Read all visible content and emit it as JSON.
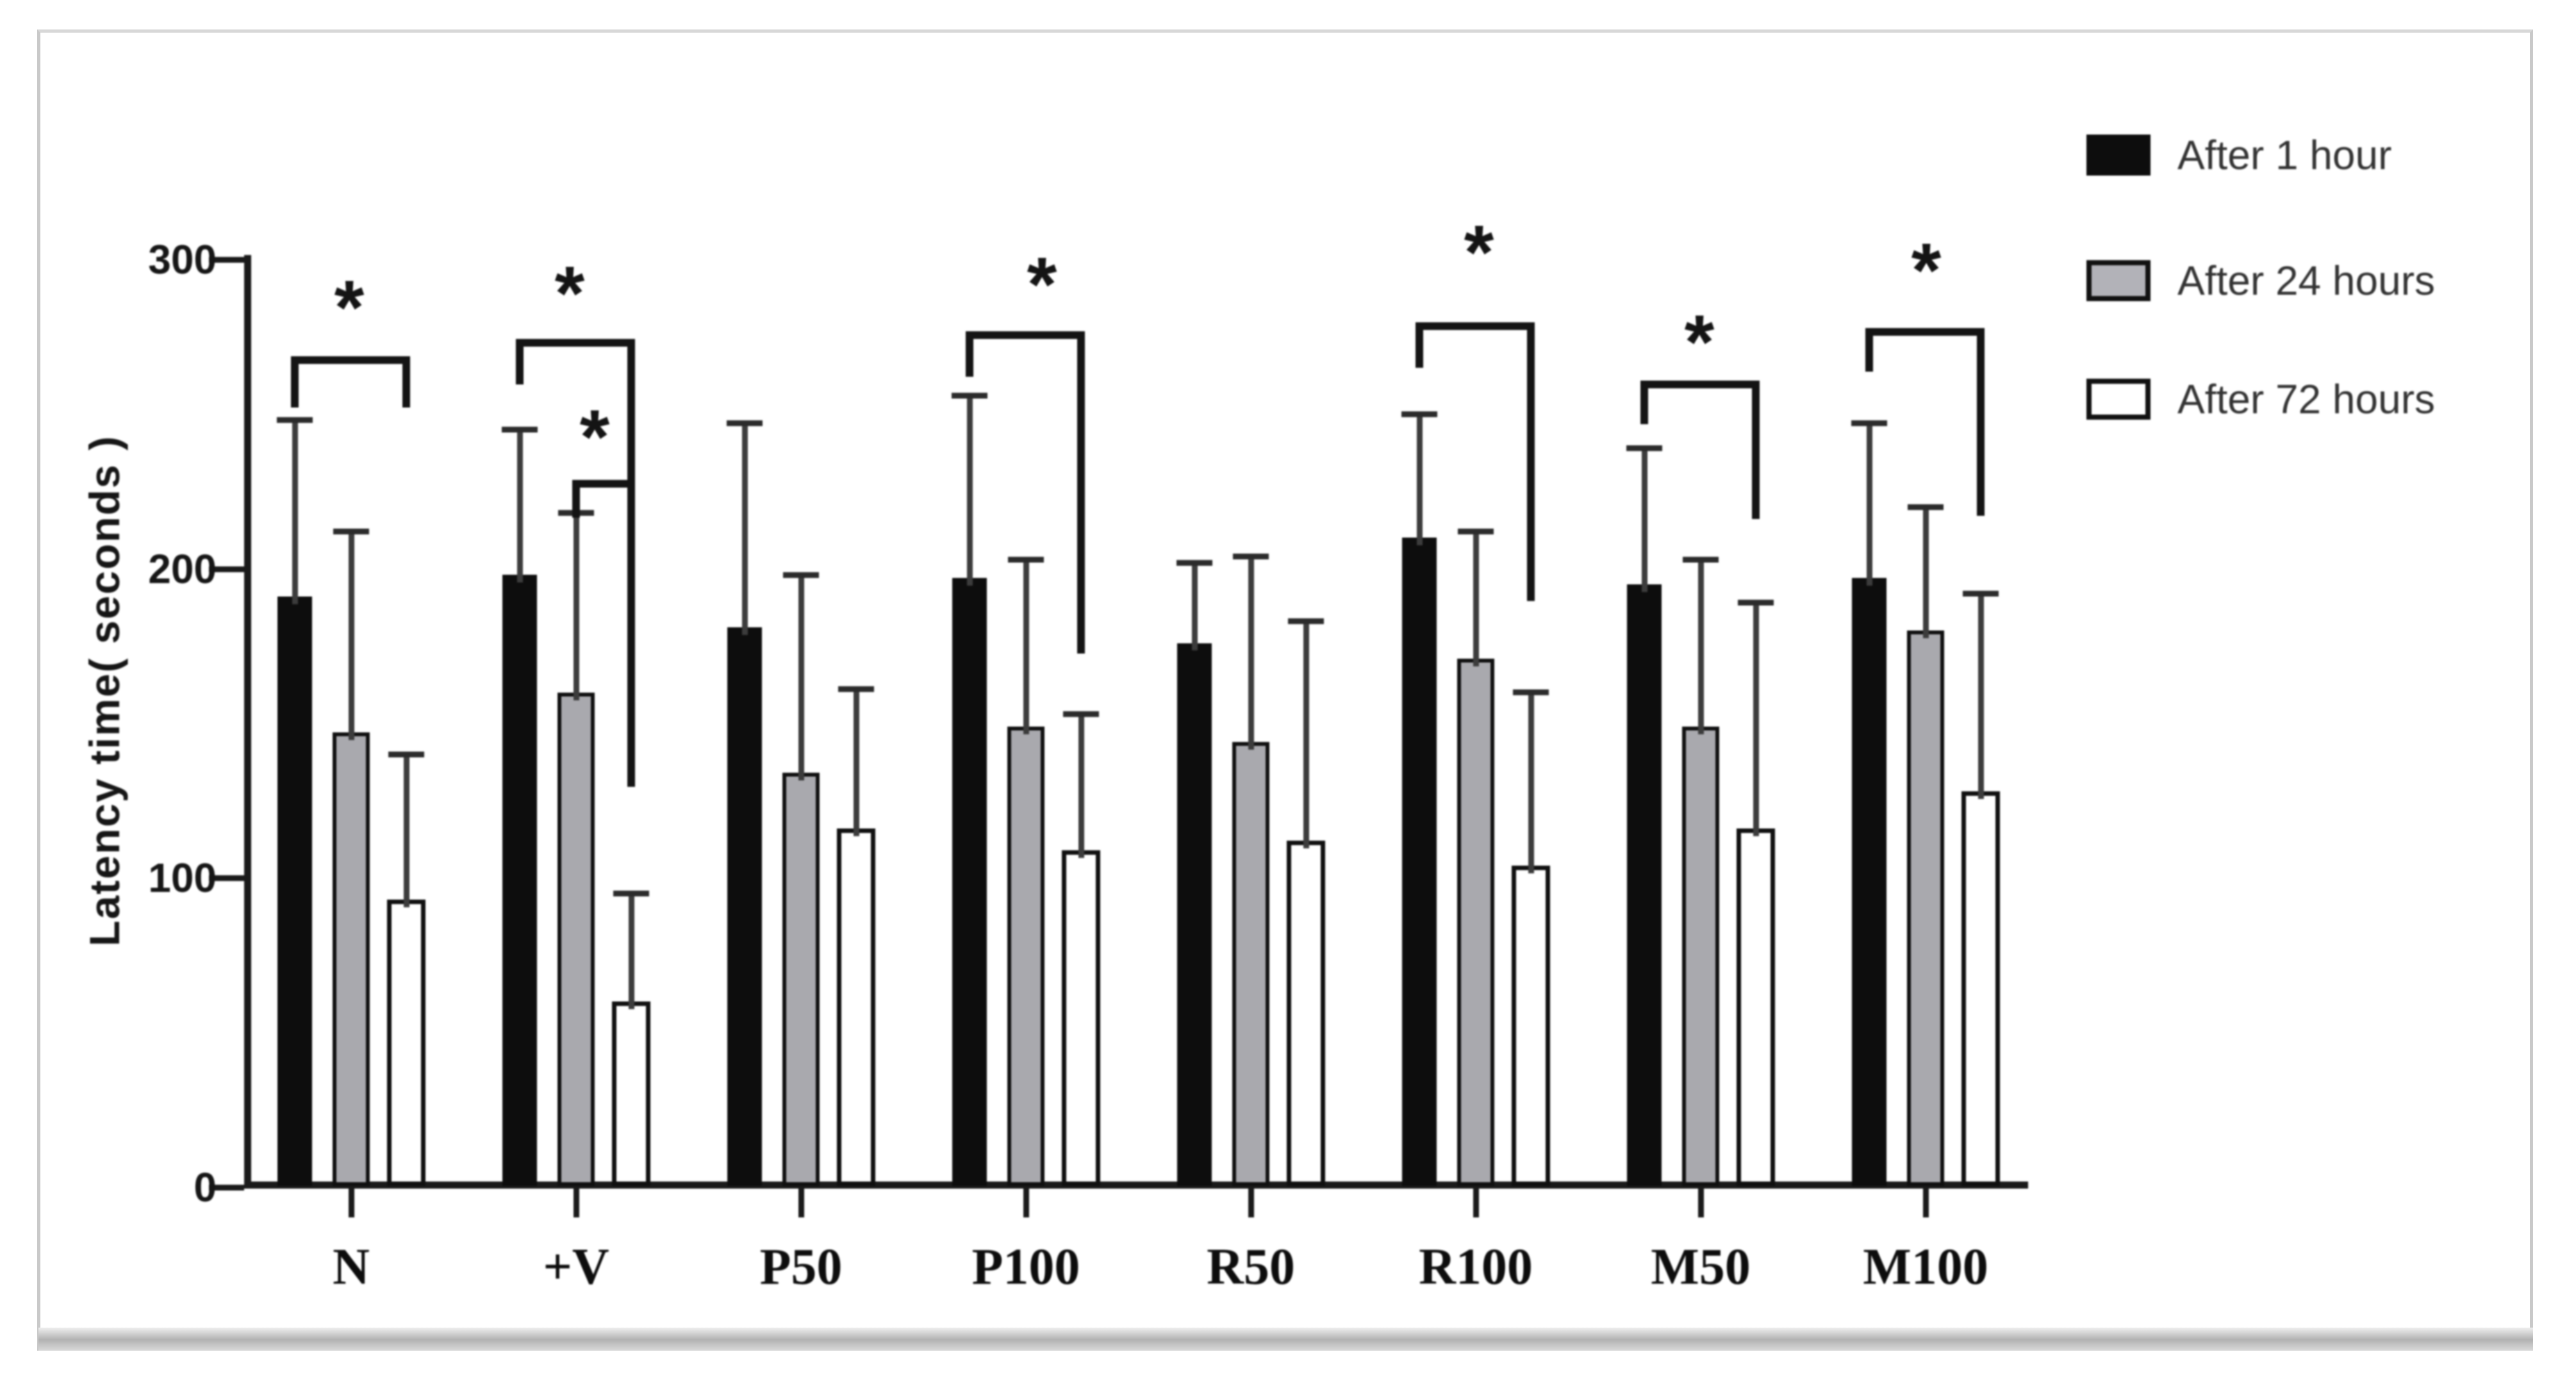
{
  "figure": {
    "frame": {
      "border_color": "#c9c9c9",
      "background": "#ffffff"
    },
    "y_axis": {
      "title": "Latency time( seconds )",
      "tick_labels": [
        "0",
        "100",
        "200",
        "300"
      ],
      "tick_values": [
        0,
        100,
        200,
        300
      ],
      "max": 300
    },
    "x_axis": {
      "categories": [
        "N",
        "+V",
        "P50",
        "P100",
        "R50",
        "R100",
        "M50",
        "M100"
      ]
    },
    "legend": {
      "items": [
        {
          "label": "After 1 hour",
          "fill": "#0d0d0d",
          "border": "#0d0d0d"
        },
        {
          "label": "After 24 hours",
          "fill": "#b2b2b8",
          "border": "#111111"
        },
        {
          "label": "After 72 hours",
          "fill": "#ffffff",
          "border": "#111111"
        }
      ]
    }
  },
  "chart_data": {
    "type": "bar",
    "title": "",
    "xlabel": "",
    "ylabel": "Latency time( seconds )",
    "ylim": [
      0,
      300
    ],
    "yticks": [
      0,
      100,
      200,
      300
    ],
    "grid": false,
    "legend_position": "upper right",
    "categories": [
      "N",
      "+V",
      "P50",
      "P100",
      "R50",
      "R100",
      "M50",
      "M100"
    ],
    "series": [
      {
        "name": "After 1 hour",
        "fill": "#0d0d0d",
        "values": [
          191,
          198,
          181,
          197,
          176,
          210,
          195,
          197
        ],
        "sd_upper": [
          57,
          47,
          66,
          59,
          26,
          40,
          44,
          50
        ]
      },
      {
        "name": "After 24 hours",
        "fill": "#a9a9ae",
        "values": [
          147,
          160,
          134,
          149,
          144,
          171,
          149,
          180
        ],
        "sd_upper": [
          65,
          58,
          64,
          54,
          60,
          41,
          54,
          40
        ]
      },
      {
        "name": "After 72 hours",
        "fill": "#ffffff",
        "values": [
          93,
          60,
          116,
          109,
          112,
          104,
          116,
          128
        ],
        "sd_upper": [
          47,
          35,
          45,
          44,
          71,
          56,
          73,
          64
        ]
      }
    ],
    "significance_brackets": [
      {
        "category": "N",
        "between": [
          "After 1 hour",
          "After 72 hours"
        ],
        "label": "*"
      },
      {
        "category": "+V",
        "between": [
          "After 1 hour",
          "After 72 hours"
        ],
        "label": "*"
      },
      {
        "category": "+V",
        "between": [
          "After 24 hours",
          "After 72 hours"
        ],
        "label": "*"
      },
      {
        "category": "P100",
        "between": [
          "After 1 hour",
          "After 72 hours"
        ],
        "label": "*"
      },
      {
        "category": "R100",
        "between": [
          "After 1 hour",
          "After 72 hours"
        ],
        "label": "*"
      },
      {
        "category": "M50",
        "between": [
          "After 1 hour",
          "After 72 hours"
        ],
        "label": "*"
      },
      {
        "category": "M100",
        "between": [
          "After 1 hour",
          "After 72 hours"
        ],
        "label": "*"
      }
    ]
  }
}
